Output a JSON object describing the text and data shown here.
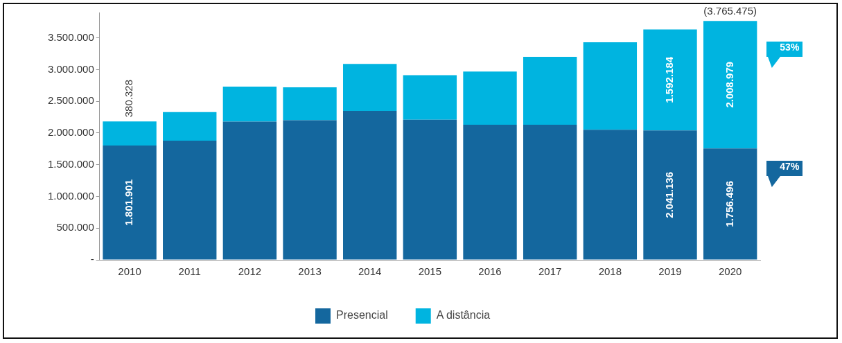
{
  "chart_data": {
    "type": "bar",
    "stacked": true,
    "categories": [
      "2010",
      "2011",
      "2012",
      "2013",
      "2014",
      "2015",
      "2016",
      "2017",
      "2018",
      "2019",
      "2020"
    ],
    "series": [
      {
        "name": "Presencial",
        "color": "#14679e",
        "values": [
          1801901,
          1880000,
          2180000,
          2200000,
          2350000,
          2210000,
          2130000,
          2130000,
          2050000,
          2041136,
          1756496
        ],
        "value_labels": [
          "1.801.901",
          null,
          null,
          null,
          null,
          null,
          null,
          null,
          null,
          "2.041.136",
          "1.756.496"
        ]
      },
      {
        "name": "A distância",
        "color": "#00b4e0",
        "values": [
          380328,
          450000,
          550000,
          520000,
          740000,
          700000,
          840000,
          1070000,
          1380000,
          1592184,
          2008979
        ],
        "value_labels": [
          "380.328",
          null,
          null,
          null,
          null,
          null,
          null,
          null,
          null,
          "1.592.184",
          "2.008.979"
        ]
      }
    ],
    "totals": [
      null,
      null,
      null,
      null,
      null,
      null,
      null,
      null,
      null,
      null,
      "(3.765.475)"
    ],
    "ylim": [
      0,
      3900000
    ],
    "yticks": [
      {
        "value": 0,
        "label": "-"
      },
      {
        "value": 500000,
        "label": "500.000"
      },
      {
        "value": 1000000,
        "label": "1.000.000"
      },
      {
        "value": 1500000,
        "label": "1.500.000"
      },
      {
        "value": 2000000,
        "label": "2.000.000"
      },
      {
        "value": 2500000,
        "label": "2.500.000"
      },
      {
        "value": 3000000,
        "label": "3.000.000"
      },
      {
        "value": 3500000,
        "label": "3.500.000"
      }
    ],
    "annotations": [
      "53%",
      "47%"
    ],
    "grid": false,
    "legend": "bottom"
  }
}
